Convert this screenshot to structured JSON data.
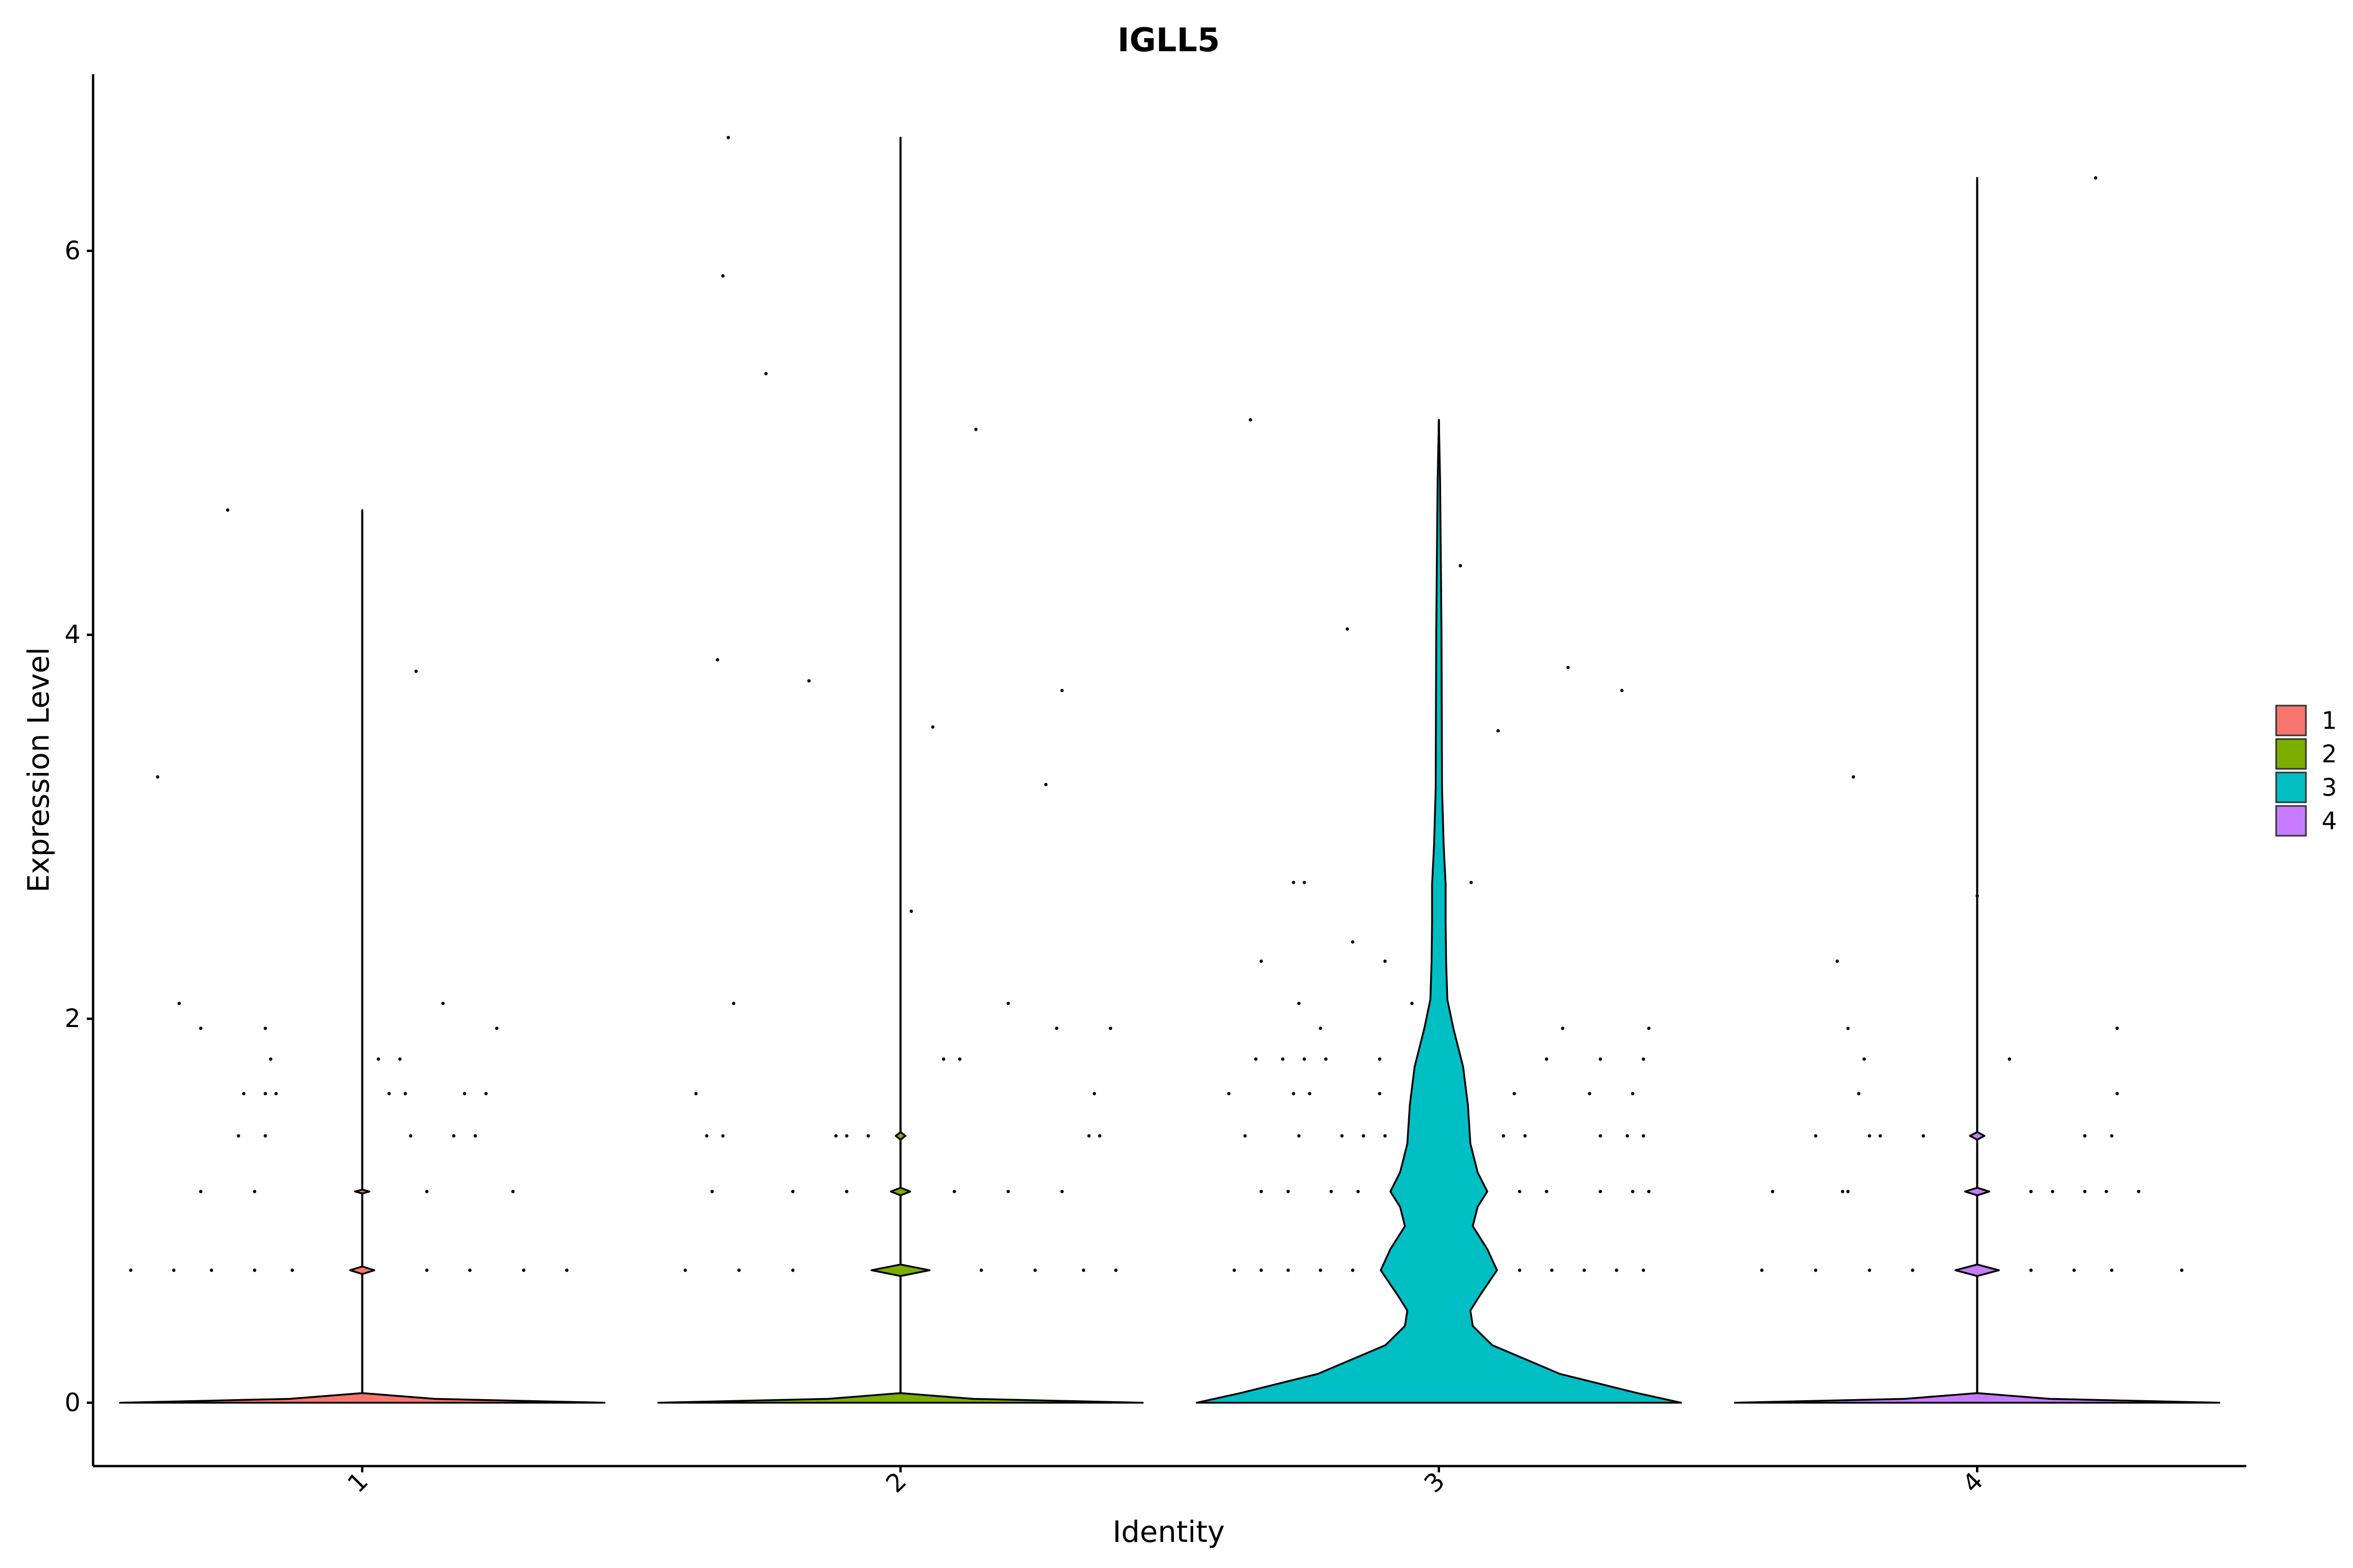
{
  "chart_data": {
    "type": "violin",
    "title": "IGLL5",
    "xlabel": "Identity",
    "ylabel": "Expression Level",
    "categories": [
      "1",
      "2",
      "3",
      "4"
    ],
    "ylim": [
      -0.33,
      6.92
    ],
    "yticks": [
      0,
      2,
      4,
      6
    ],
    "grid": false,
    "legend": {
      "placement": "right",
      "entries": [
        {
          "label": "1",
          "color": "#F8766D"
        },
        {
          "label": "2",
          "color": "#7CAE00"
        },
        {
          "label": "3",
          "color": "#00BFC4"
        },
        {
          "label": "4",
          "color": "#C77CFF"
        }
      ]
    },
    "series": [
      {
        "category": "1",
        "color": "#F8766D",
        "max": 4.65,
        "density": [
          [
            0,
            1.0
          ],
          [
            0.02,
            0.3
          ],
          [
            0.05,
            0.0
          ],
          [
            0.67,
            0.0
          ],
          [
            0.69,
            0.05
          ],
          [
            0.71,
            0.0
          ],
          [
            1.09,
            0.0
          ],
          [
            1.1,
            0.03
          ],
          [
            1.11,
            0.0
          ],
          [
            4.65,
            0.0
          ]
        ],
        "outliers": [
          [
            -0.38,
            3.26
          ],
          [
            -0.34,
            2.08
          ],
          [
            -0.3,
            1.95
          ],
          [
            -0.25,
            4.65
          ],
          [
            -0.18,
            1.95
          ],
          [
            -0.17,
            1.79
          ],
          [
            0.1,
            3.81
          ],
          [
            0.15,
            2.08
          ],
          [
            0.25,
            1.95
          ],
          [
            -0.22,
            1.61
          ],
          [
            -0.18,
            1.61
          ],
          [
            -0.16,
            1.61
          ],
          [
            0.05,
            1.61
          ],
          [
            0.08,
            1.61
          ],
          [
            0.19,
            1.61
          ],
          [
            0.23,
            1.61
          ],
          [
            -0.23,
            1.39
          ],
          [
            -0.18,
            1.39
          ],
          [
            0.09,
            1.39
          ],
          [
            0.17,
            1.39
          ],
          [
            0.21,
            1.39
          ],
          [
            0.03,
            1.79
          ],
          [
            0.07,
            1.79
          ],
          [
            -0.3,
            1.1
          ],
          [
            -0.2,
            1.1
          ],
          [
            0.12,
            1.1
          ],
          [
            0.28,
            1.1
          ],
          [
            -0.43,
            0.69
          ],
          [
            -0.35,
            0.69
          ],
          [
            -0.28,
            0.69
          ],
          [
            -0.2,
            0.69
          ],
          [
            -0.13,
            0.69
          ],
          [
            0.12,
            0.69
          ],
          [
            0.2,
            0.69
          ],
          [
            0.3,
            0.69
          ],
          [
            0.38,
            0.69
          ]
        ]
      },
      {
        "category": "2",
        "color": "#7CAE00",
        "max": 6.59,
        "density": [
          [
            0,
            1.0
          ],
          [
            0.02,
            0.3
          ],
          [
            0.05,
            0.0
          ],
          [
            0.66,
            0.0
          ],
          [
            0.69,
            0.12
          ],
          [
            0.72,
            0.0
          ],
          [
            1.08,
            0.0
          ],
          [
            1.1,
            0.04
          ],
          [
            1.12,
            0.0
          ],
          [
            1.37,
            0.0
          ],
          [
            1.39,
            0.02
          ],
          [
            1.41,
            0.0
          ],
          [
            6.59,
            0.0
          ]
        ],
        "outliers": [
          [
            -0.32,
            6.59
          ],
          [
            -0.33,
            5.87
          ],
          [
            -0.25,
            5.36
          ],
          [
            -0.34,
            3.87
          ],
          [
            -0.17,
            3.76
          ],
          [
            0.14,
            5.07
          ],
          [
            0.06,
            3.52
          ],
          [
            0.3,
            3.71
          ],
          [
            0.27,
            3.22
          ],
          [
            0.02,
            2.56
          ],
          [
            -0.31,
            2.08
          ],
          [
            0.2,
            2.08
          ],
          [
            0.29,
            1.95
          ],
          [
            0.39,
            1.95
          ],
          [
            0.08,
            1.79
          ],
          [
            0.11,
            1.79
          ],
          [
            -0.38,
            1.61
          ],
          [
            0.36,
            1.61
          ],
          [
            -0.36,
            1.39
          ],
          [
            -0.33,
            1.39
          ],
          [
            -0.12,
            1.39
          ],
          [
            -0.1,
            1.39
          ],
          [
            -0.06,
            1.39
          ],
          [
            0.35,
            1.39
          ],
          [
            0.37,
            1.39
          ],
          [
            -0.35,
            1.1
          ],
          [
            -0.2,
            1.1
          ],
          [
            -0.1,
            1.1
          ],
          [
            0.1,
            1.1
          ],
          [
            0.2,
            1.1
          ],
          [
            0.3,
            1.1
          ],
          [
            -0.4,
            0.69
          ],
          [
            -0.3,
            0.69
          ],
          [
            -0.2,
            0.69
          ],
          [
            0.15,
            0.69
          ],
          [
            0.25,
            0.69
          ],
          [
            0.34,
            0.69
          ],
          [
            0.4,
            0.69
          ]
        ]
      },
      {
        "category": "3",
        "color": "#00BFC4",
        "max": 5.12,
        "density": [
          [
            0,
            1.0
          ],
          [
            0.05,
            0.82
          ],
          [
            0.15,
            0.5
          ],
          [
            0.3,
            0.22
          ],
          [
            0.4,
            0.14
          ],
          [
            0.48,
            0.13
          ],
          [
            0.56,
            0.17
          ],
          [
            0.69,
            0.24
          ],
          [
            0.8,
            0.2
          ],
          [
            0.92,
            0.14
          ],
          [
            1.02,
            0.16
          ],
          [
            1.1,
            0.2
          ],
          [
            1.2,
            0.16
          ],
          [
            1.35,
            0.13
          ],
          [
            1.55,
            0.12
          ],
          [
            1.75,
            0.1
          ],
          [
            1.95,
            0.06
          ],
          [
            2.1,
            0.035
          ],
          [
            2.3,
            0.03
          ],
          [
            2.5,
            0.028
          ],
          [
            2.7,
            0.028
          ],
          [
            2.9,
            0.02
          ],
          [
            3.2,
            0.013
          ],
          [
            3.6,
            0.012
          ],
          [
            4.0,
            0.011
          ],
          [
            4.4,
            0.008
          ],
          [
            4.8,
            0.005
          ],
          [
            5.12,
            0.0
          ]
        ],
        "outliers": [
          [
            -0.35,
            5.12
          ],
          [
            -0.17,
            4.03
          ],
          [
            0.04,
            4.36
          ],
          [
            0.11,
            3.5
          ],
          [
            0.24,
            3.83
          ],
          [
            0.34,
            3.71
          ],
          [
            -0.27,
            2.71
          ],
          [
            -0.25,
            2.71
          ],
          [
            0.06,
            2.71
          ],
          [
            -0.33,
            2.3
          ],
          [
            -0.16,
            2.4
          ],
          [
            -0.1,
            2.3
          ],
          [
            -0.26,
            2.08
          ],
          [
            -0.05,
            2.08
          ],
          [
            -0.22,
            1.95
          ],
          [
            0.23,
            1.95
          ],
          [
            0.39,
            1.95
          ],
          [
            -0.34,
            1.79
          ],
          [
            -0.29,
            1.79
          ],
          [
            -0.25,
            1.79
          ],
          [
            -0.21,
            1.79
          ],
          [
            -0.11,
            1.79
          ],
          [
            0.2,
            1.79
          ],
          [
            0.3,
            1.79
          ],
          [
            0.38,
            1.79
          ],
          [
            -0.39,
            1.61
          ],
          [
            -0.27,
            1.61
          ],
          [
            -0.24,
            1.61
          ],
          [
            -0.11,
            1.61
          ],
          [
            0.14,
            1.61
          ],
          [
            0.28,
            1.61
          ],
          [
            0.36,
            1.61
          ],
          [
            -0.36,
            1.39
          ],
          [
            -0.26,
            1.39
          ],
          [
            -0.18,
            1.39
          ],
          [
            -0.14,
            1.39
          ],
          [
            -0.1,
            1.39
          ],
          [
            0.12,
            1.39
          ],
          [
            0.16,
            1.39
          ],
          [
            0.3,
            1.39
          ],
          [
            0.35,
            1.39
          ],
          [
            0.38,
            1.39
          ],
          [
            -0.33,
            1.1
          ],
          [
            -0.28,
            1.1
          ],
          [
            -0.2,
            1.1
          ],
          [
            -0.15,
            1.1
          ],
          [
            0.15,
            1.1
          ],
          [
            0.2,
            1.1
          ],
          [
            0.3,
            1.1
          ],
          [
            0.36,
            1.1
          ],
          [
            0.39,
            1.1
          ],
          [
            -0.38,
            0.69
          ],
          [
            -0.33,
            0.69
          ],
          [
            -0.28,
            0.69
          ],
          [
            -0.22,
            0.69
          ],
          [
            -0.16,
            0.69
          ],
          [
            0.15,
            0.69
          ],
          [
            0.21,
            0.69
          ],
          [
            0.27,
            0.69
          ],
          [
            0.33,
            0.69
          ],
          [
            0.38,
            0.69
          ]
        ]
      },
      {
        "category": "4",
        "color": "#C77CFF",
        "max": 6.38,
        "density": [
          [
            0,
            1.0
          ],
          [
            0.02,
            0.3
          ],
          [
            0.05,
            0.0
          ],
          [
            0.66,
            0.0
          ],
          [
            0.69,
            0.09
          ],
          [
            0.72,
            0.0
          ],
          [
            1.08,
            0.0
          ],
          [
            1.1,
            0.05
          ],
          [
            1.12,
            0.0
          ],
          [
            1.37,
            0.0
          ],
          [
            1.39,
            0.03
          ],
          [
            1.41,
            0.0
          ],
          [
            6.38,
            0.0
          ]
        ],
        "outliers": [
          [
            0.22,
            6.38
          ],
          [
            -0.23,
            3.26
          ],
          [
            -0.26,
            2.3
          ],
          [
            0.0,
            2.64
          ],
          [
            -0.24,
            1.95
          ],
          [
            0.26,
            1.95
          ],
          [
            -0.21,
            1.79
          ],
          [
            0.06,
            1.79
          ],
          [
            -0.22,
            1.61
          ],
          [
            0.26,
            1.61
          ],
          [
            -0.3,
            1.39
          ],
          [
            -0.2,
            1.39
          ],
          [
            -0.18,
            1.39
          ],
          [
            -0.1,
            1.39
          ],
          [
            0.2,
            1.39
          ],
          [
            0.25,
            1.39
          ],
          [
            -0.38,
            1.1
          ],
          [
            -0.25,
            1.1
          ],
          [
            -0.24,
            1.1
          ],
          [
            0.1,
            1.1
          ],
          [
            0.14,
            1.1
          ],
          [
            0.2,
            1.1
          ],
          [
            0.24,
            1.1
          ],
          [
            0.3,
            1.1
          ],
          [
            -0.4,
            0.69
          ],
          [
            -0.3,
            0.69
          ],
          [
            -0.2,
            0.69
          ],
          [
            -0.12,
            0.69
          ],
          [
            0.1,
            0.69
          ],
          [
            0.18,
            0.69
          ],
          [
            0.25,
            0.69
          ],
          [
            0.38,
            0.69
          ]
        ]
      }
    ]
  }
}
